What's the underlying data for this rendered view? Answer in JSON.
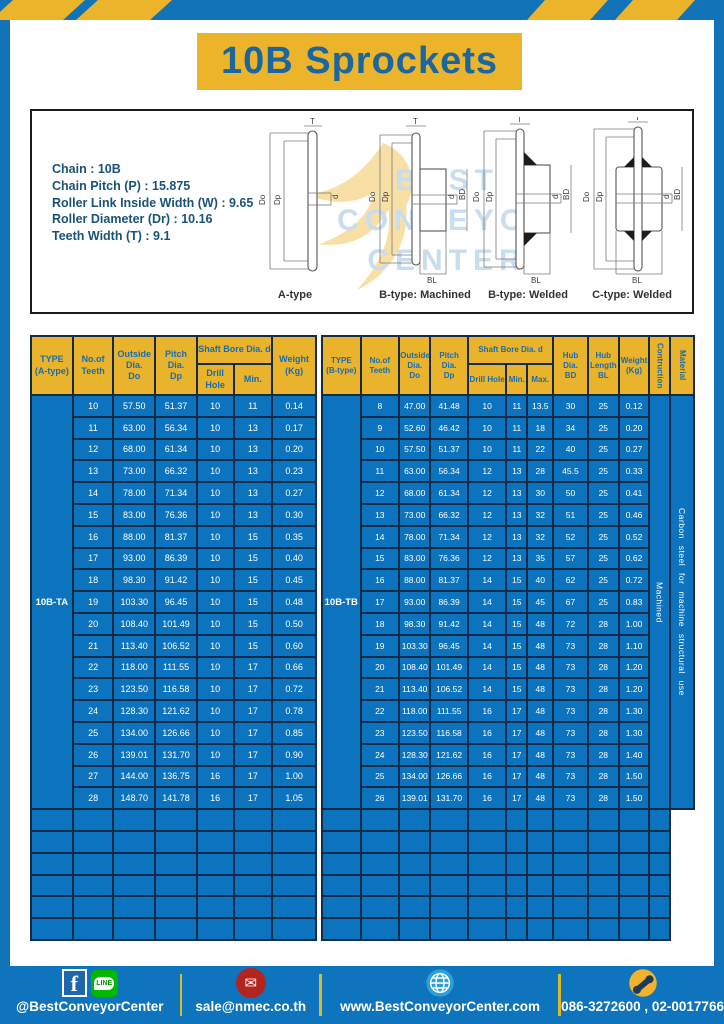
{
  "page": {
    "title": "10B Sprockets"
  },
  "specs": {
    "lines": [
      "Chain  :  10B",
      "Chain Pitch (P)  :  15.875",
      "Roller Link Inside Width (W) : 9.65",
      "Roller Diameter (Dr)  : 10.16",
      "Teeth Width (T)  :  9.1"
    ]
  },
  "watermark": {
    "line1": "BEST",
    "line2": "CONVEYOR",
    "line3": "CENTER"
  },
  "diagrams": {
    "captions": [
      "A-type",
      "B-type: Machined",
      "B-type: Welded",
      "C-type: Welded"
    ],
    "labels": {
      "T": "T",
      "Do": "Do",
      "Dp": "Dp",
      "d": "d",
      "BD": "BD",
      "BL": "BL"
    }
  },
  "table_a": {
    "type_label": "10B-TA",
    "header": {
      "type": "TYPE\n(A-type)",
      "teeth": "No.of\nTeeth",
      "outside": "Outside\nDia.\nDo",
      "pitch": "Pitch Dia.\nDp",
      "shaft": "Shaft Bore Dia. d",
      "drill": "Drill Hole",
      "min": "Min.",
      "weight": "Weight\n(Kg)"
    },
    "rows": [
      [
        "10",
        "57.50",
        "51.37",
        "10",
        "11",
        "0.14"
      ],
      [
        "11",
        "63.00",
        "56.34",
        "10",
        "13",
        "0.17"
      ],
      [
        "12",
        "68.00",
        "61.34",
        "10",
        "13",
        "0.20"
      ],
      [
        "13",
        "73.00",
        "66.32",
        "10",
        "13",
        "0.23"
      ],
      [
        "14",
        "78.00",
        "71.34",
        "10",
        "13",
        "0.27"
      ],
      [
        "15",
        "83.00",
        "76.36",
        "10",
        "13",
        "0.30"
      ],
      [
        "16",
        "88.00",
        "81.37",
        "10",
        "15",
        "0.35"
      ],
      [
        "17",
        "93.00",
        "86.39",
        "10",
        "15",
        "0.40"
      ],
      [
        "18",
        "98.30",
        "91.42",
        "10",
        "15",
        "0.45"
      ],
      [
        "19",
        "103.30",
        "96.45",
        "10",
        "15",
        "0.48"
      ],
      [
        "20",
        "108.40",
        "101.49",
        "10",
        "15",
        "0.50"
      ],
      [
        "21",
        "113.40",
        "106.52",
        "10",
        "15",
        "0.60"
      ],
      [
        "22",
        "118.00",
        "111.55",
        "10",
        "17",
        "0.66"
      ],
      [
        "23",
        "123.50",
        "116.58",
        "10",
        "17",
        "0.72"
      ],
      [
        "24",
        "128.30",
        "121.62",
        "10",
        "17",
        "0.78"
      ],
      [
        "25",
        "134.00",
        "126.66",
        "10",
        "17",
        "0.85"
      ],
      [
        "26",
        "139.01",
        "131.70",
        "10",
        "17",
        "0.90"
      ],
      [
        "27",
        "144.00",
        "136.75",
        "16",
        "17",
        "1.00"
      ],
      [
        "28",
        "148.70",
        "141.78",
        "16",
        "17",
        "1.05"
      ]
    ],
    "empty_rows": 6
  },
  "table_b": {
    "type_label": "10B-TB",
    "header": {
      "type": "TYPE\n(B-type)",
      "teeth": "No.of\nTeeth",
      "outside": "Outside\nDia.\nDo",
      "pitch": "Pitch Dia.\nDp",
      "shaft": "Shaft Bore Dia. d",
      "drill": "Drill Hole",
      "min": "Min.",
      "max": "Max.",
      "hub_dia": "Hub Dia.\nBD",
      "hub_len": "Hub\nLength\nBL",
      "weight": "Weight\n(Kg)",
      "contruction": "Contruction",
      "material": "Material"
    },
    "rows": [
      [
        "8",
        "47.00",
        "41.48",
        "10",
        "11",
        "13.5",
        "30",
        "25",
        "0.12"
      ],
      [
        "9",
        "52.60",
        "46.42",
        "10",
        "11",
        "18",
        "34",
        "25",
        "0.20"
      ],
      [
        "10",
        "57.50",
        "51.37",
        "10",
        "11",
        "22",
        "40",
        "25",
        "0.27"
      ],
      [
        "11",
        "63.00",
        "56.34",
        "12",
        "13",
        "28",
        "45.5",
        "25",
        "0.33"
      ],
      [
        "12",
        "68.00",
        "61.34",
        "12",
        "13",
        "30",
        "50",
        "25",
        "0.41"
      ],
      [
        "13",
        "73.00",
        "66.32",
        "12",
        "13",
        "32",
        "51",
        "25",
        "0.46"
      ],
      [
        "14",
        "78.00",
        "71.34",
        "12",
        "13",
        "32",
        "52",
        "25",
        "0.52"
      ],
      [
        "15",
        "83.00",
        "76.36",
        "12",
        "13",
        "35",
        "57",
        "25",
        "0.62"
      ],
      [
        "16",
        "88.00",
        "81.37",
        "14",
        "15",
        "40",
        "62",
        "25",
        "0.72"
      ],
      [
        "17",
        "93.00",
        "86.39",
        "14",
        "15",
        "45",
        "67",
        "25",
        "0.83"
      ],
      [
        "18",
        "98.30",
        "91.42",
        "14",
        "15",
        "48",
        "72",
        "28",
        "1.00"
      ],
      [
        "19",
        "103.30",
        "96.45",
        "14",
        "15",
        "48",
        "73",
        "28",
        "1.10"
      ],
      [
        "20",
        "108.40",
        "101.49",
        "14",
        "15",
        "48",
        "73",
        "28",
        "1.20"
      ],
      [
        "21",
        "113.40",
        "106.52",
        "14",
        "15",
        "48",
        "73",
        "28",
        "1.20"
      ],
      [
        "22",
        "118.00",
        "111.55",
        "16",
        "17",
        "48",
        "73",
        "28",
        "1.30"
      ],
      [
        "23",
        "123.50",
        "116.58",
        "16",
        "17",
        "48",
        "73",
        "28",
        "1.30"
      ],
      [
        "24",
        "128.30",
        "121.62",
        "16",
        "17",
        "48",
        "73",
        "28",
        "1.40"
      ],
      [
        "25",
        "134.00",
        "126.66",
        "16",
        "17",
        "48",
        "73",
        "28",
        "1.50"
      ],
      [
        "26",
        "139.01",
        "131.70",
        "16",
        "17",
        "48",
        "73",
        "28",
        "1.50"
      ]
    ],
    "contruction_value": "Machined",
    "material_value": "Carbon steel  for machine structural use",
    "empty_rows": 6
  },
  "footer": {
    "social_label": "@BestConveyorCenter",
    "email": "sale@nmec.co.th",
    "website": "www.BestConveyorCenter.com",
    "phone": "086-3272600 , 02-0017766",
    "line_text": "LINE"
  },
  "icons": {
    "facebook_glyph": "f",
    "mail_glyph": "✉"
  },
  "colors": {
    "frame_blue": "#1373b9",
    "table_blue": "#0c73bf",
    "header_yellow": "#e9b32b",
    "grid_navy": "#132b47",
    "title_blue": "#1b669f"
  }
}
